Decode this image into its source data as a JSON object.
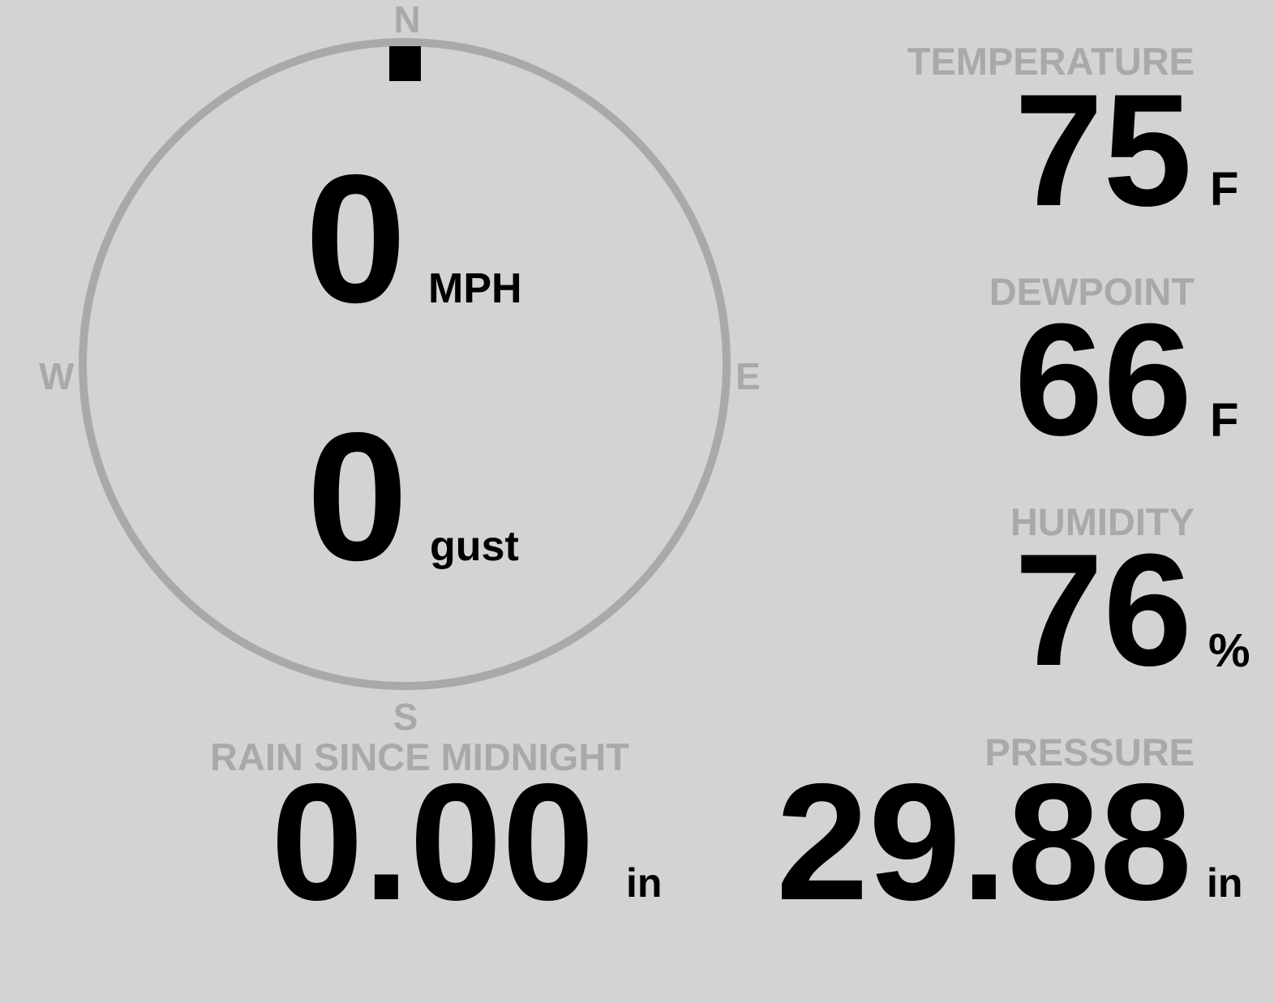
{
  "colors": {
    "background": "#d3d3d3",
    "muted": "#a9a9a9",
    "text": "#000000"
  },
  "wind": {
    "direction_degrees": 0,
    "speed": "0",
    "speed_unit": "MPH",
    "gust": "0",
    "gust_unit": "gust",
    "compass": {
      "n": "N",
      "e": "E",
      "s": "S",
      "w": "W"
    }
  },
  "temperature": {
    "label": "TEMPERATURE",
    "value": "75",
    "unit": "F"
  },
  "dewpoint": {
    "label": "DEWPOINT",
    "value": "66",
    "unit": "F"
  },
  "humidity": {
    "label": "HUMIDITY",
    "value": "76",
    "unit": "%"
  },
  "rain": {
    "label": "RAIN SINCE MIDNIGHT",
    "value": "0.00",
    "unit": "in"
  },
  "pressure": {
    "label": "PRESSURE",
    "value": "29.88",
    "unit": "in"
  }
}
